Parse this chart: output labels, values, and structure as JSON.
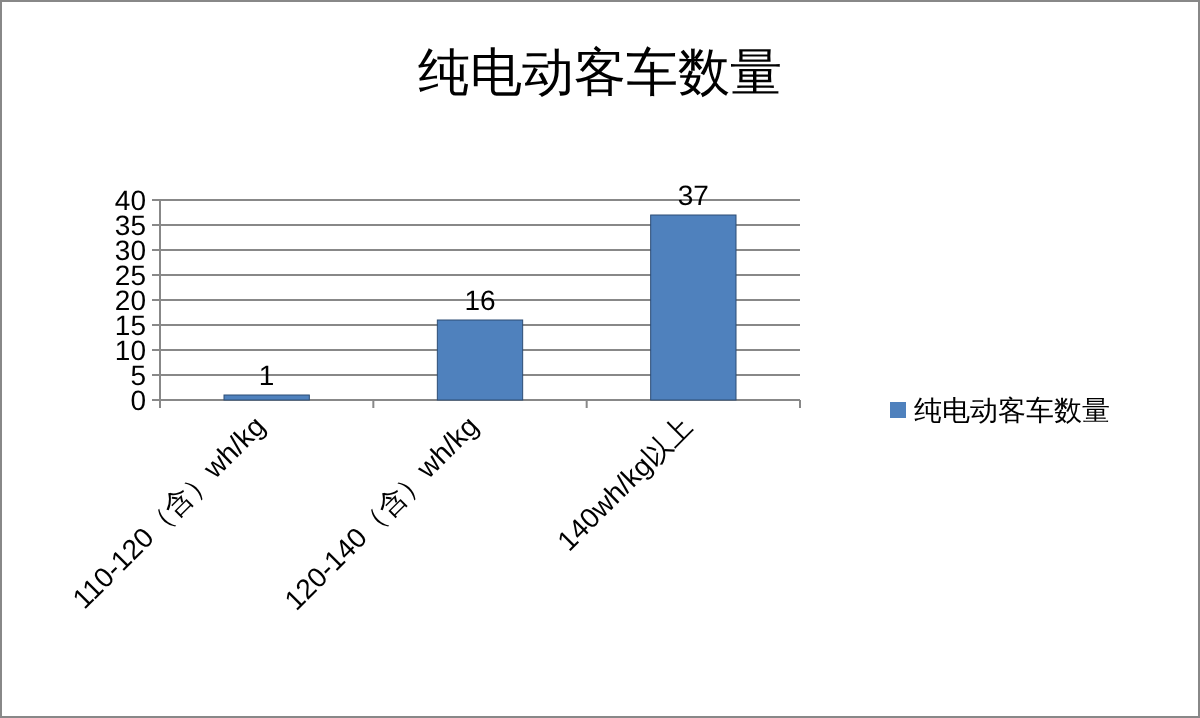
{
  "chart_data": {
    "type": "bar",
    "title": "纯电动客车数量",
    "categories": [
      "110-120（含）wh/kg",
      "120-140（含）wh/kg",
      "140wh/kg以上"
    ],
    "series": [
      {
        "name": "纯电动客车数量",
        "color": "#4f81bd",
        "values": [
          1,
          16,
          37
        ]
      }
    ],
    "ylim": [
      0,
      40
    ],
    "yticks": [
      0,
      5,
      10,
      15,
      20,
      25,
      30,
      35,
      40
    ],
    "grid": "y",
    "legend": "right",
    "data_labels": true
  }
}
